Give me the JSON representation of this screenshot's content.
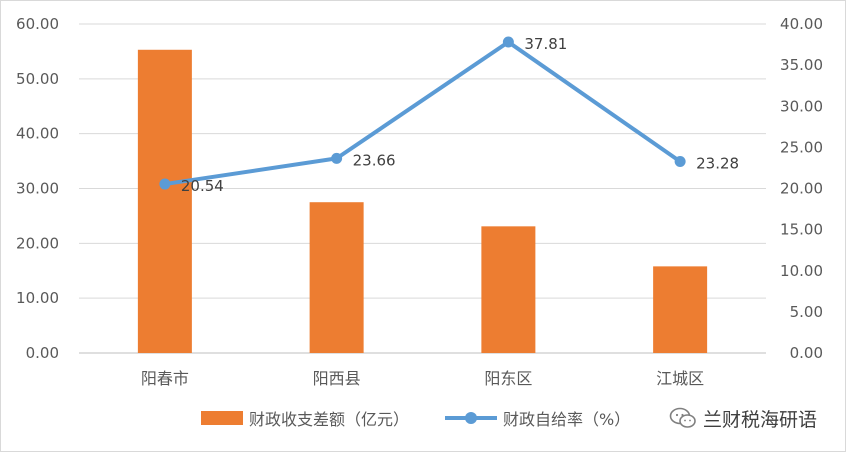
{
  "chart_data": {
    "type": "bar+line",
    "categories": [
      "阳春市",
      "阳西县",
      "阳东区",
      "江城区"
    ],
    "series": [
      {
        "name": "财政收支差额（亿元）",
        "type": "bar",
        "axis": "left",
        "color": "#ed7d31",
        "values": [
          55.3,
          27.5,
          23.1,
          15.8
        ]
      },
      {
        "name": "财政自给率（%）",
        "type": "line",
        "axis": "right",
        "color": "#5b9bd5",
        "values": [
          20.54,
          23.66,
          37.81,
          23.28
        ],
        "data_labels": [
          "20.54",
          "23.66",
          "37.81",
          "23.28"
        ]
      }
    ],
    "y_left": {
      "ylim": [
        0,
        60
      ],
      "ticks": [
        "0.00",
        "10.00",
        "20.00",
        "30.00",
        "40.00",
        "50.00",
        "60.00"
      ]
    },
    "y_right": {
      "ylim": [
        0,
        40
      ],
      "ticks": [
        "0.00",
        "5.00",
        "10.00",
        "15.00",
        "20.00",
        "25.00",
        "30.00",
        "35.00",
        "40.00"
      ]
    },
    "grid": true,
    "legend": "bottom"
  },
  "watermark": {
    "text": "兰财税海研语",
    "icon": "wechat-icon"
  }
}
